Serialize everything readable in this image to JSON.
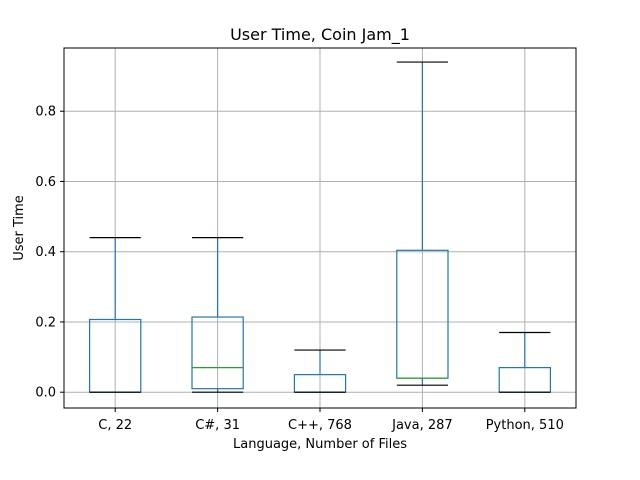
{
  "chart_data": {
    "type": "box",
    "title": "User Time, Coin Jam_1",
    "xlabel": "Language, Number of Files",
    "ylabel": "User Time",
    "ylim": [
      -0.045,
      0.98
    ],
    "yticks": [
      0.0,
      0.2,
      0.4,
      0.6,
      0.8
    ],
    "ytick_labels": [
      "0.0",
      "0.2",
      "0.4",
      "0.6",
      "0.8"
    ],
    "grid": true,
    "categories": [
      "C, 22",
      "C#, 31",
      "C++, 768",
      "Java, 287",
      "Python, 510"
    ],
    "boxes": [
      {
        "whislo": 0.0,
        "q1": 0.0,
        "med": 0.0,
        "q3": 0.207,
        "whishi": 0.44
      },
      {
        "whislo": 0.0,
        "q1": 0.01,
        "med": 0.07,
        "q3": 0.214,
        "whishi": 0.44
      },
      {
        "whislo": 0.0,
        "q1": 0.0,
        "med": 0.0,
        "q3": 0.05,
        "whishi": 0.12
      },
      {
        "whislo": 0.02,
        "q1": 0.04,
        "med": 0.04,
        "q3": 0.404,
        "whishi": 0.94
      },
      {
        "whislo": 0.0,
        "q1": 0.0,
        "med": 0.0,
        "q3": 0.07,
        "whishi": 0.17
      }
    ],
    "colors": {
      "box": "#1f77b4",
      "median": "#2ca02c",
      "cap": "#000000",
      "grid": "#b0b0b0"
    }
  }
}
